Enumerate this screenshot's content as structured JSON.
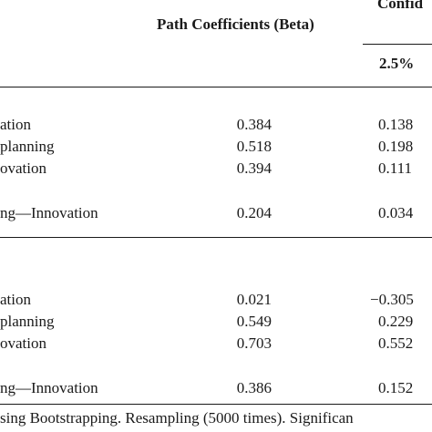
{
  "table": {
    "headers": {
      "path_coefficients": "Path Coefficients (Beta)",
      "confidence": "Confid",
      "lower": "2.5%"
    },
    "group1": {
      "rows": [
        {
          "label": "ation",
          "beta": "0.384",
          "lower": "0.138"
        },
        {
          "label": "planning",
          "beta": "0.518",
          "lower": "0.198"
        },
        {
          "label": "ovation",
          "beta": "0.394",
          "lower": "0.111"
        },
        {
          "label": "ng—Innovation",
          "beta": "0.204",
          "lower": "0.034"
        }
      ]
    },
    "group2": {
      "rows": [
        {
          "label": "ation",
          "beta": "0.021",
          "lower": "−0.305"
        },
        {
          "label": "planning",
          "beta": "0.549",
          "lower": "0.229"
        },
        {
          "label": "ovation",
          "beta": "0.703",
          "lower": "0.552"
        },
        {
          "label": "ng—Innovation",
          "beta": "0.386",
          "lower": "0.152"
        }
      ]
    },
    "footnote": "sing Bootstrapping. Resampling (5000 times). Significan"
  }
}
